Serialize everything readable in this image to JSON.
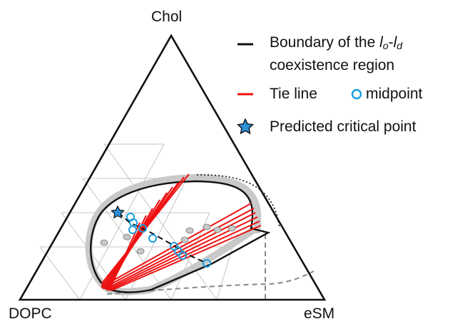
{
  "diagram": {
    "type": "ternary-phase-diagram",
    "vertices": {
      "top": "Chol",
      "bottom_left": "DOPC",
      "bottom_right": "eSM"
    },
    "grid_divisions": 5
  },
  "legend": {
    "boundary": {
      "prefix": "Boundary of the ",
      "lo": "l",
      "lo_sub": "o",
      "dash": "-",
      "ld": "l",
      "ld_sub": "d",
      "line2": "coexistence region",
      "color": "#000000"
    },
    "tie_line": {
      "label": "Tie line",
      "color": "#ee1111"
    },
    "midpoint": {
      "label": "midpoint",
      "color": "#1a9ee0"
    },
    "critical_point": {
      "label": "Predicted critical point",
      "color": "#2a8fd6"
    }
  }
}
